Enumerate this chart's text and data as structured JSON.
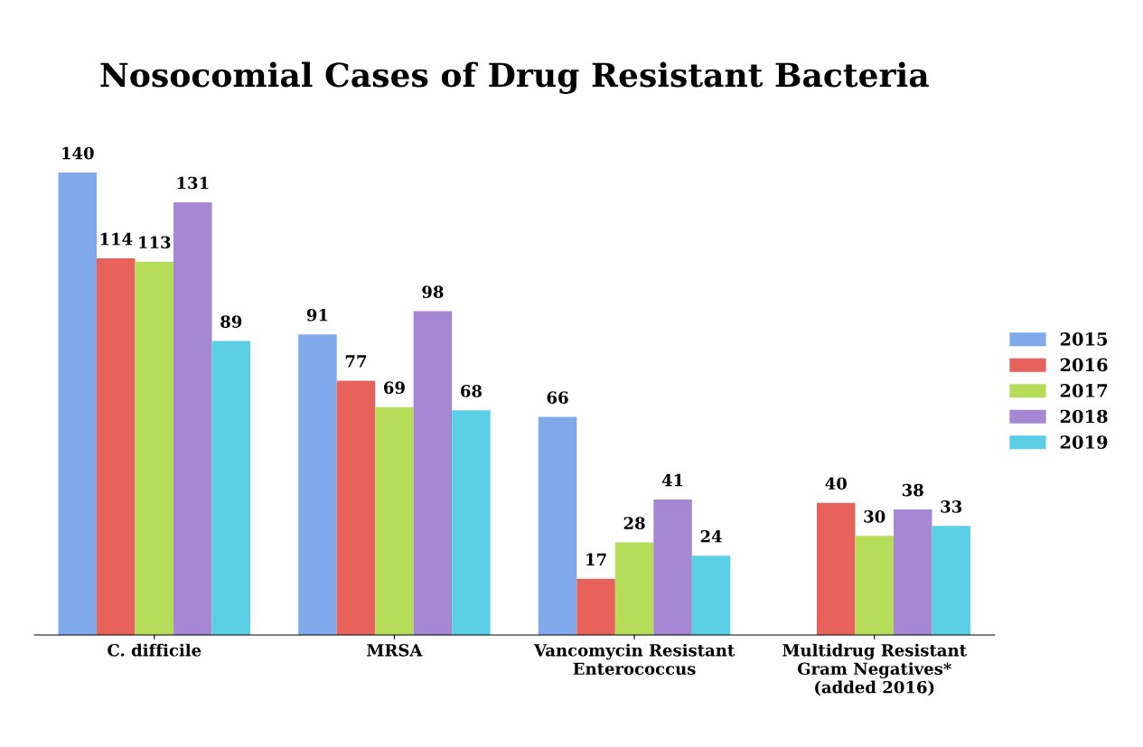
{
  "chart_data": {
    "type": "bar",
    "title": "Nosocomial Cases of Drug Resistant Bacteria",
    "categories": [
      "C. difficile",
      "MRSA",
      "Vancomycin Resistant\nEnterococcus",
      "Multidrug Resistant\nGram Negatives*\n(added 2016)"
    ],
    "series": [
      {
        "name": "2015",
        "color": "#7fa9ea",
        "values": [
          140,
          91,
          66,
          null
        ]
      },
      {
        "name": "2016",
        "color": "#e8625c",
        "values": [
          114,
          77,
          17,
          40
        ]
      },
      {
        "name": "2017",
        "color": "#b5dd5a",
        "values": [
          113,
          69,
          28,
          30
        ]
      },
      {
        "name": "2018",
        "color": "#a687d4",
        "values": [
          131,
          98,
          41,
          38
        ]
      },
      {
        "name": "2019",
        "color": "#5acfe6",
        "values": [
          89,
          68,
          24,
          33
        ]
      }
    ],
    "data_labels": true,
    "legend": "right",
    "grid": false,
    "tick_labels": "x"
  }
}
